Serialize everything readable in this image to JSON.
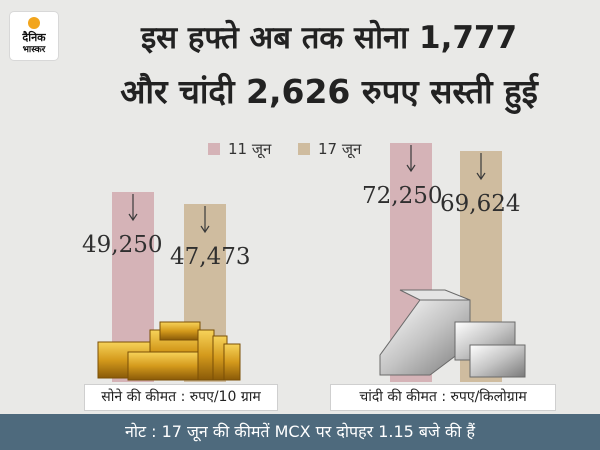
{
  "logo": {
    "line1": "दैनिक",
    "line2": "भास्कर"
  },
  "title": {
    "line1": "इस हफ्ते अब तक सोना 1,777",
    "line2": "और चांदी 2,626 रुपए सस्ती हुई"
  },
  "colors": {
    "series_11": "#d5b3b7",
    "series_17": "#cfbc9f",
    "footer_bg": "#4e6a7d"
  },
  "chart_data": {
    "type": "bar",
    "categories": [
      "सोने की कीमत : रुपए/10 ग्राम",
      "चांदी की कीमत : रुपए/किलोग्राम"
    ],
    "series": [
      {
        "name": "11 जून",
        "values": [
          49250,
          72250
        ],
        "labels": [
          "49,250",
          "72,250"
        ]
      },
      {
        "name": "17 जून",
        "values": [
          47473,
          69624
        ],
        "labels": [
          "47,473",
          "69,624"
        ]
      }
    ],
    "legend": "top"
  },
  "footer": "नोट : 17 जून की कीमतें MCX पर दोपहर 1.15 बजे की हैं"
}
